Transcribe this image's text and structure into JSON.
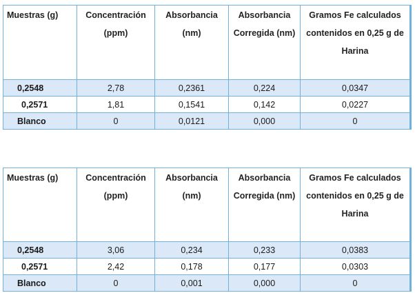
{
  "tables": [
    {
      "headers": [
        "Muestras (g)",
        "Concentración (ppm)",
        "Absorbancia (nm)",
        "Absorbancia Corregida (nm)",
        "Gramos Fe calculados contenidos en 0,25 g de Harina"
      ],
      "rows": [
        [
          "0,2548",
          "2,78",
          "0,2361",
          "0,224",
          "0,0347"
        ],
        [
          "0,2571",
          "1,81",
          "0,1541",
          "0,142",
          "0,0227"
        ],
        [
          "Blanco",
          "0",
          "0,0121",
          "0,000",
          "0"
        ]
      ]
    },
    {
      "headers": [
        "Muestras (g)",
        "Concentración (ppm)",
        "Absorbancia (nm)",
        "Absorbancia Corregida (nm)",
        "Gramos Fe calculados contenidos en 0,25 g de Harina"
      ],
      "rows": [
        [
          "0,2548",
          "3,06",
          "0,234",
          "0,233",
          "0,0383"
        ],
        [
          "0,2571",
          "2,42",
          "0,178",
          "0,177",
          "0,0303"
        ],
        [
          "Blanco",
          "0",
          "0,001",
          "0,000",
          "0"
        ]
      ]
    }
  ]
}
